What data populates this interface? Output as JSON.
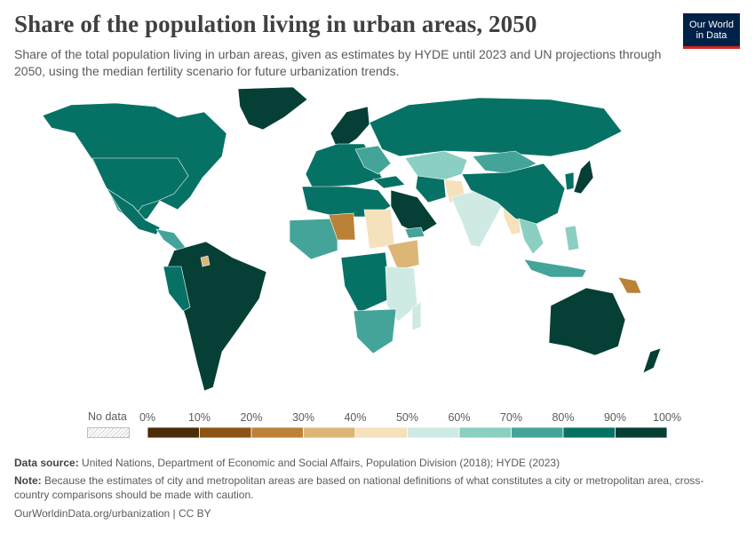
{
  "header": {
    "title": "Share of the population living in urban areas, 2050",
    "subtitle": "Share of the total population living in urban areas, given as estimates by HYDE until 2023 and UN projections through 2050, using the median fertility scenario for future urbanization trends.",
    "logo_line1": "Our World",
    "logo_line2": "in Data"
  },
  "map": {
    "legend": {
      "no_data_label": "No data",
      "ticks": [
        "0%",
        "10%",
        "20%",
        "30%",
        "40%",
        "50%",
        "60%",
        "70%",
        "80%",
        "90%",
        "100%"
      ],
      "colors": [
        "#4b2d0a",
        "#8c5414",
        "#bb8136",
        "#dbb676",
        "#f5e1bb",
        "#cfeae4",
        "#8bcfc2",
        "#44a49a",
        "#067265",
        "#053f35"
      ]
    }
  },
  "footer": {
    "source_label": "Data source:",
    "source_text": " United Nations, Department of Economic and Social Affairs, Population Division (2018); HYDE (2023)",
    "note_label": "Note:",
    "note_text": " Because the estimates of city and metropolitan areas are based on national definitions of what constitutes a city or metropolitan area, cross-country comparisons should be made with caution.",
    "url": "OurWorldinData.org/urbanization | CC BY"
  }
}
